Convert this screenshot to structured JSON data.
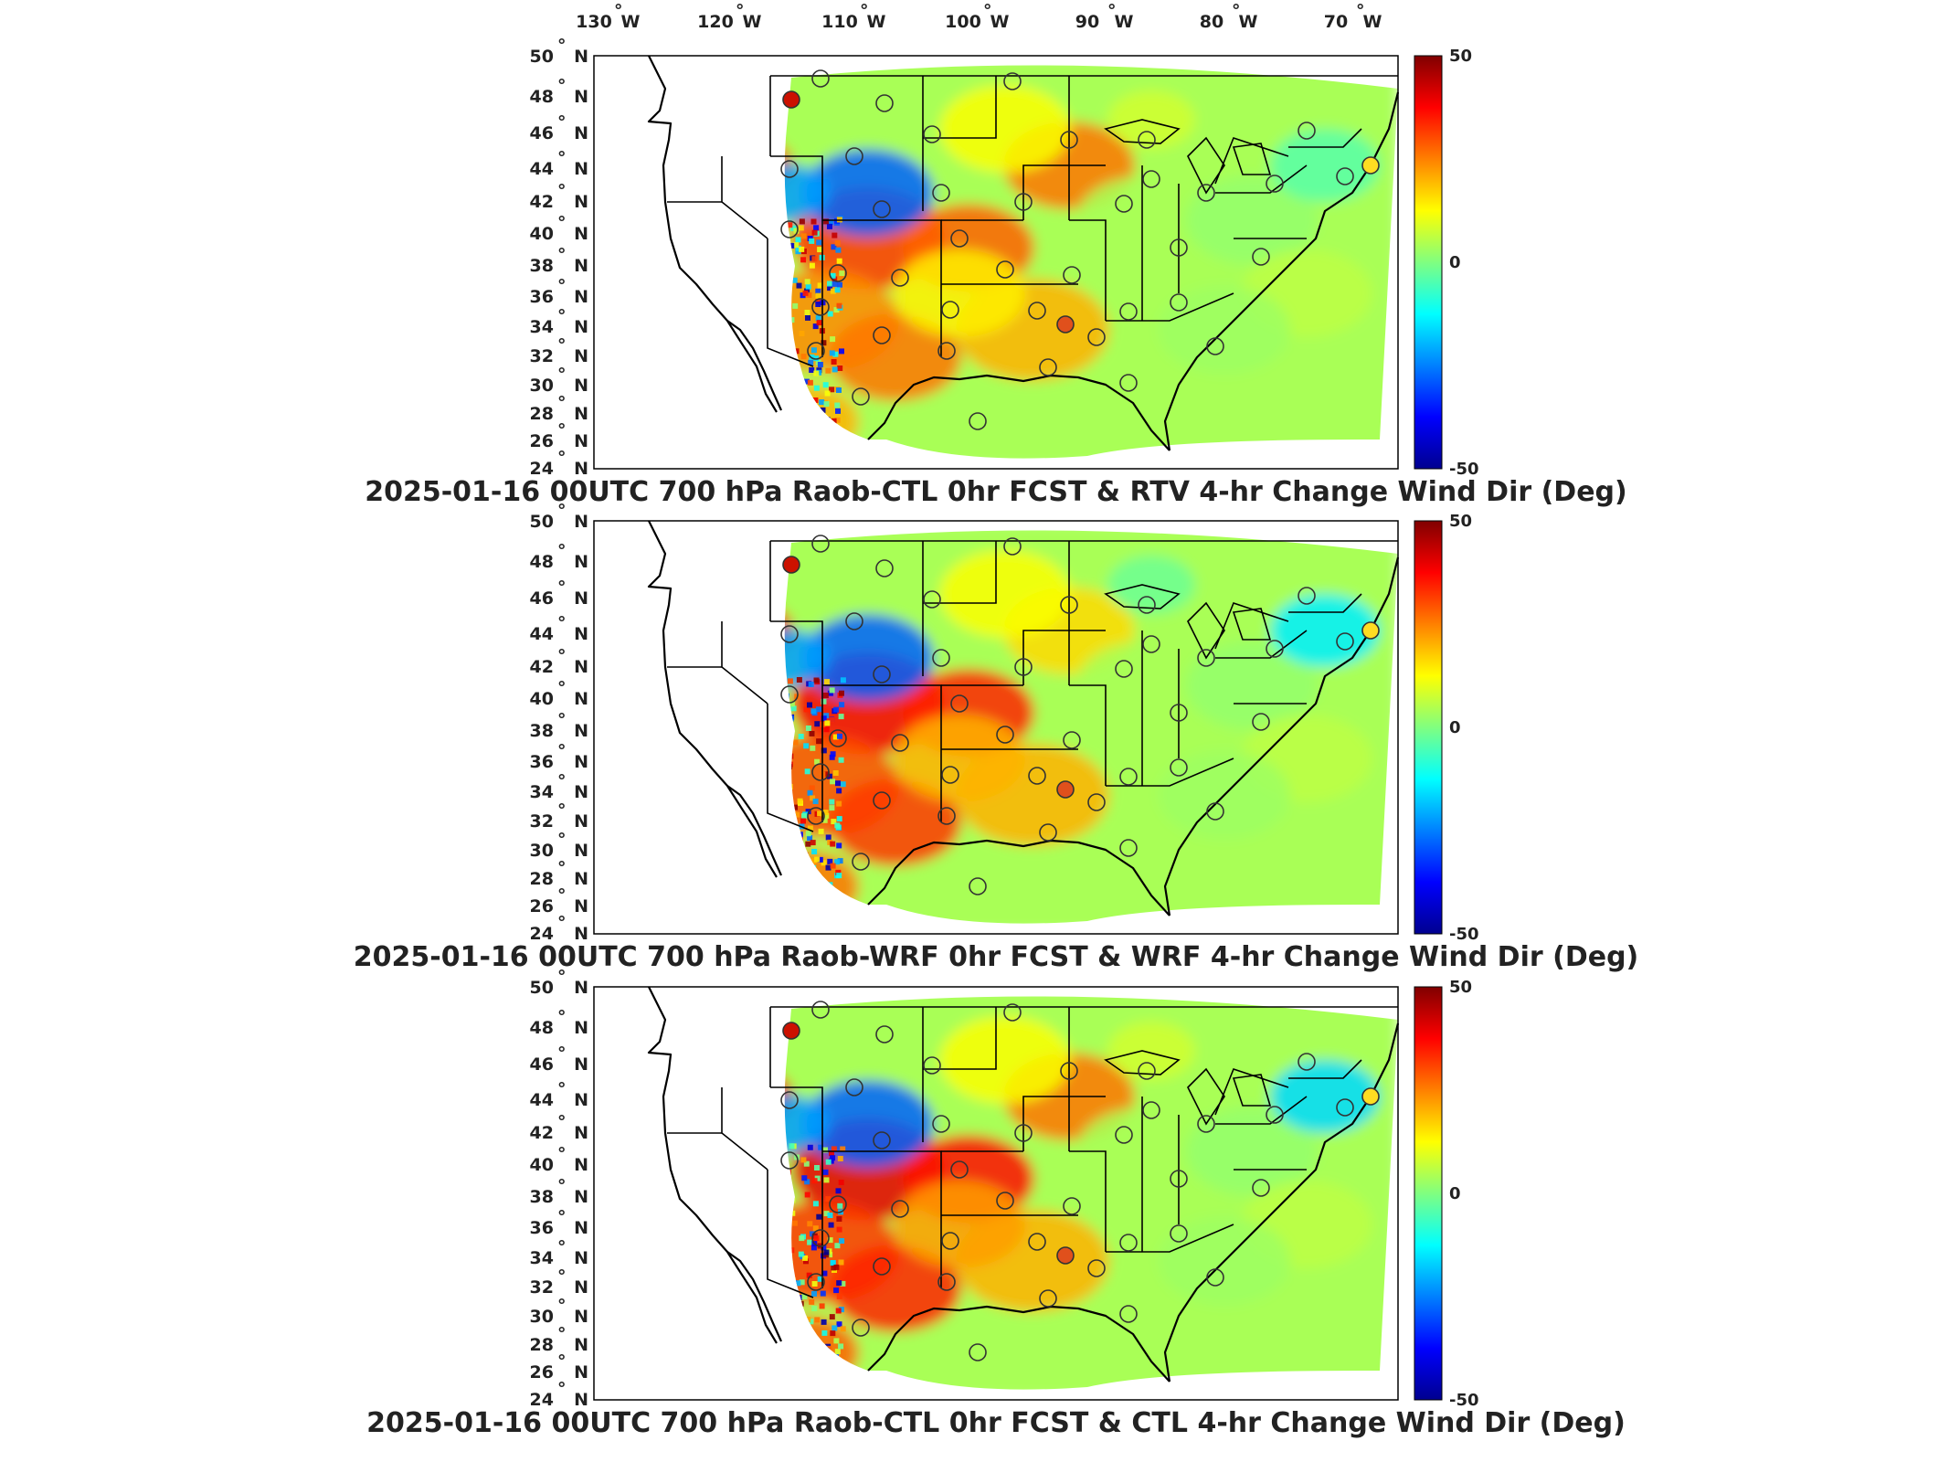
{
  "lon_labels": [
    "130",
    "120",
    "110",
    "100",
    "90",
    "80",
    "70"
  ],
  "lon_suffix": "W",
  "lat_labels": [
    "50",
    "48",
    "46",
    "44",
    "42",
    "40",
    "38",
    "36",
    "34",
    "32",
    "30",
    "28",
    "26",
    "24"
  ],
  "lat_suffix": "N",
  "degree_symbol": "°",
  "colorbar": {
    "max_label": "50",
    "mid_label": "0",
    "min_label": "-50",
    "min": -50,
    "max": 50
  },
  "colormap": [
    "#00008f",
    "#0000ff",
    "#0080ff",
    "#00ffff",
    "#80ff80",
    "#ffff00",
    "#ff8000",
    "#ff0000",
    "#800000"
  ],
  "panels": [
    {
      "title": "2025-01-16 00UTC 700 hPa Raob-CTL 0hr FCST & RTV 4-hr Change Wind Dir (Deg)",
      "field": "rtv"
    },
    {
      "title": "2025-01-16 00UTC 700 hPa Raob-WRF 0hr FCST & WRF 4-hr Change Wind Dir (Deg)",
      "field": "wrf"
    },
    {
      "title": "2025-01-16 00UTC 700 hPa Raob-CTL 0hr FCST & CTL 4-hr Change Wind Dir (Deg)",
      "field": "ctl"
    }
  ]
}
